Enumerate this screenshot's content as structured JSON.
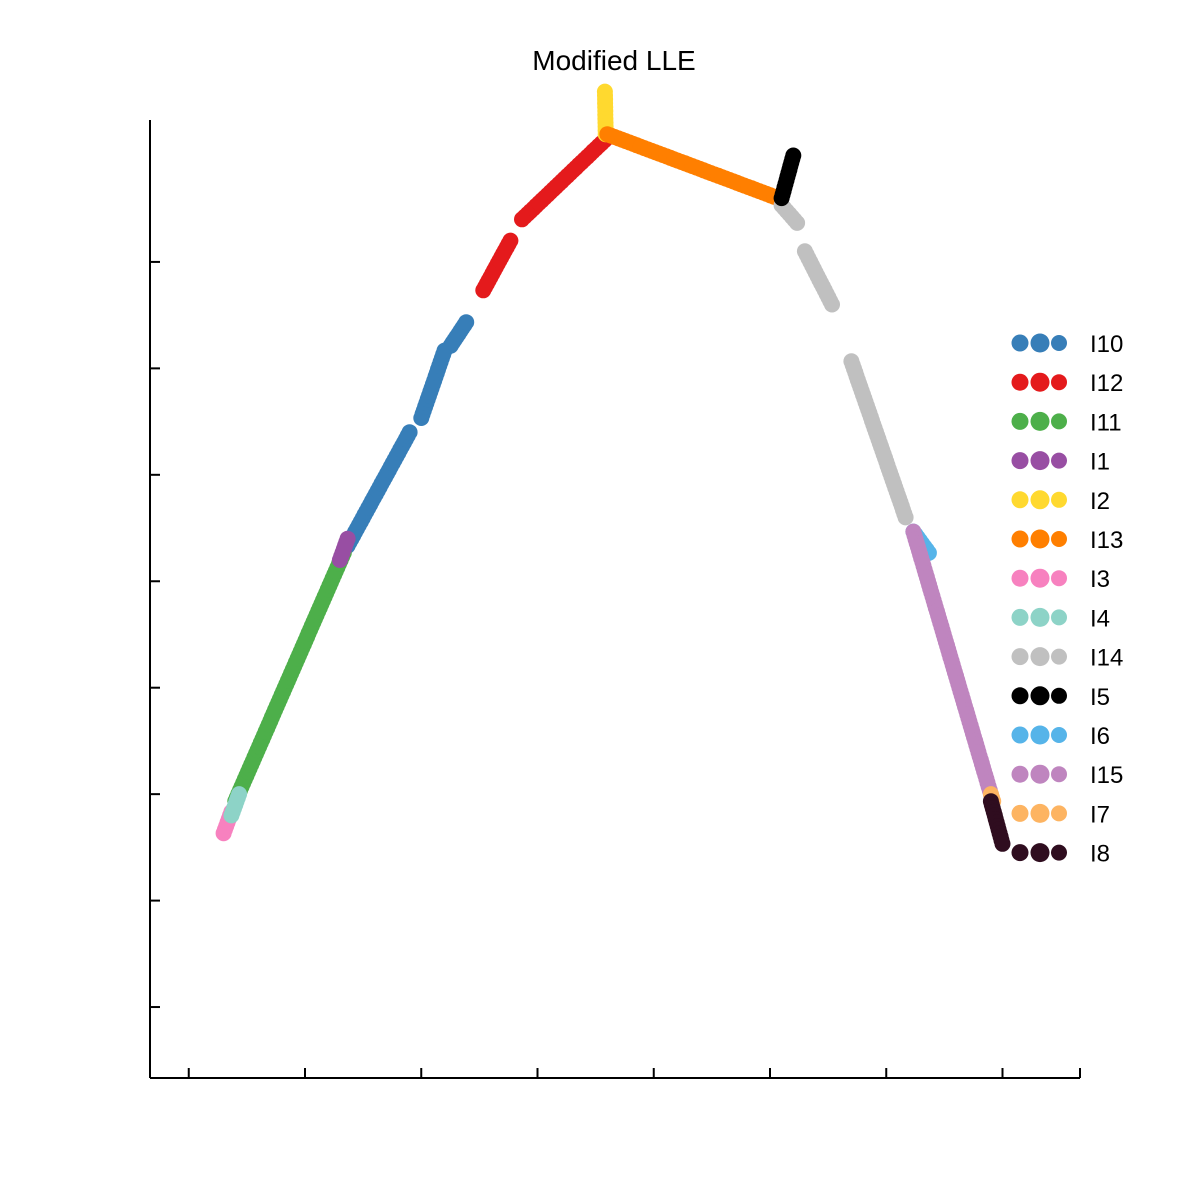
{
  "chart_data": {
    "type": "scatter",
    "title": "Modified LLE",
    "xlabel": "",
    "ylabel": "",
    "xlim": [
      -0.05,
      1.15
    ],
    "ylim": [
      -0.25,
      1.1
    ],
    "x_tick_values": [
      0.0,
      0.15,
      0.3,
      0.45,
      0.6,
      0.75,
      0.9,
      1.05
    ],
    "y_tick_values": [
      -0.15,
      0.0,
      0.15,
      0.3,
      0.45,
      0.6,
      0.75,
      0.9
    ],
    "grid": false,
    "legend_position": "right",
    "series": [
      {
        "name": "I10",
        "color": "#377eb8",
        "segments": [
          [
            0.205,
            0.5,
            0.285,
            0.66
          ],
          [
            0.3,
            0.68,
            0.33,
            0.775
          ],
          [
            0.338,
            0.782,
            0.358,
            0.815
          ]
        ]
      },
      {
        "name": "I12",
        "color": "#e41a1c",
        "segments": [
          [
            0.38,
            0.86,
            0.415,
            0.93
          ],
          [
            0.43,
            0.96,
            0.54,
            1.075
          ]
        ]
      },
      {
        "name": "I11",
        "color": "#4daf4a",
        "segments": [
          [
            0.06,
            0.14,
            0.2,
            0.49
          ]
        ]
      },
      {
        "name": "I1",
        "color": "#984ea3",
        "segments": [
          [
            0.195,
            0.48,
            0.205,
            0.51
          ]
        ]
      },
      {
        "name": "I2",
        "color": "#ffd92f",
        "segments": [
          [
            0.538,
            1.08,
            0.537,
            1.14
          ]
        ]
      },
      {
        "name": "I13",
        "color": "#ff7f00",
        "segments": [
          [
            0.54,
            1.08,
            0.76,
            0.99
          ]
        ]
      },
      {
        "name": "I3",
        "color": "#f781bf",
        "segments": [
          [
            0.045,
            0.095,
            0.055,
            0.125
          ]
        ]
      },
      {
        "name": "I4",
        "color": "#8dd3c7",
        "segments": [
          [
            0.055,
            0.12,
            0.065,
            0.15
          ]
        ]
      },
      {
        "name": "I14",
        "color": "#c0c0c0",
        "segments": [
          [
            0.765,
            0.98,
            0.785,
            0.955
          ],
          [
            0.795,
            0.915,
            0.83,
            0.84
          ],
          [
            0.855,
            0.76,
            0.925,
            0.54
          ]
        ]
      },
      {
        "name": "I5",
        "color": "#000000",
        "segments": [
          [
            0.765,
            0.99,
            0.78,
            1.05
          ]
        ]
      },
      {
        "name": "I6",
        "color": "#56b4e9",
        "segments": [
          [
            0.935,
            0.52,
            0.955,
            0.49
          ]
        ]
      },
      {
        "name": "I15",
        "color": "#bf85bf",
        "segments": [
          [
            0.935,
            0.52,
            1.035,
            0.15
          ]
        ]
      },
      {
        "name": "I7",
        "color": "#fdb462",
        "segments": [
          [
            1.035,
            0.15,
            1.038,
            0.14
          ]
        ]
      },
      {
        "name": "I8",
        "color": "#2f0d1f",
        "segments": [
          [
            1.035,
            0.14,
            1.05,
            0.08
          ]
        ]
      }
    ]
  }
}
